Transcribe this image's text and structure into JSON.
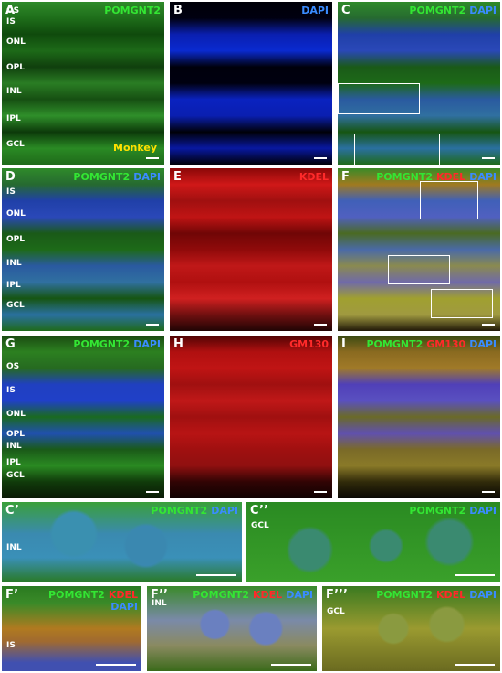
{
  "panels": [
    {
      "letter": "A",
      "stains": [
        {
          "text": "POMGNT2",
          "color": "#33e633"
        }
      ],
      "layers": [
        "OS",
        "IS",
        "ONL",
        "OPL",
        "INL",
        "IPL",
        "GCL"
      ],
      "note": "Monkey"
    },
    {
      "letter": "B",
      "stains": [
        {
          "text": "DAPI",
          "color": "#3a8cff"
        }
      ],
      "layers": []
    },
    {
      "letter": "C",
      "stains": [
        {
          "text": "POMGNT2",
          "color": "#33e633"
        },
        {
          "text": "DAPI",
          "color": "#3a8cff"
        }
      ],
      "layers": []
    },
    {
      "letter": "D",
      "stains": [
        {
          "text": "POMGNT2",
          "color": "#33e633"
        },
        {
          "text": "DAPI",
          "color": "#3a8cff"
        }
      ],
      "layers": [
        "IS",
        "ONL",
        "OPL",
        "INL",
        "IPL",
        "GCL"
      ]
    },
    {
      "letter": "E",
      "stains": [
        {
          "text": "KDEL",
          "color": "#ff2a2a"
        }
      ],
      "layers": []
    },
    {
      "letter": "F",
      "stains": [
        {
          "text": "POMGNT2",
          "color": "#33e633"
        },
        {
          "text": "KDEL",
          "color": "#ff2a2a"
        },
        {
          "text": "DAPI",
          "color": "#3a8cff"
        }
      ],
      "layers": []
    },
    {
      "letter": "G",
      "stains": [
        {
          "text": "POMGNT2",
          "color": "#33e633"
        },
        {
          "text": "DAPI",
          "color": "#3a8cff"
        }
      ],
      "layers": [
        "OS",
        "IS",
        "ONL",
        "OPL",
        "INL",
        "IPL",
        "GCL"
      ]
    },
    {
      "letter": "H",
      "stains": [
        {
          "text": "GM130",
          "color": "#ff2a2a"
        }
      ],
      "layers": []
    },
    {
      "letter": "I",
      "stains": [
        {
          "text": "POMGNT2",
          "color": "#33e633"
        },
        {
          "text": "GM130",
          "color": "#ff2a2a"
        },
        {
          "text": "DAPI",
          "color": "#3a8cff"
        }
      ],
      "layers": []
    },
    {
      "letter": "C’",
      "stains": [
        {
          "text": "POMGNT2",
          "color": "#33e633"
        },
        {
          "text": "DAPI",
          "color": "#3a8cff"
        }
      ],
      "layers": [
        "INL"
      ]
    },
    {
      "letter": "C’’",
      "stains": [
        {
          "text": "POMGNT2",
          "color": "#33e633"
        },
        {
          "text": "DAPI",
          "color": "#3a8cff"
        }
      ],
      "layers": [
        "GCL"
      ]
    },
    {
      "letter": "F’",
      "stains": [
        {
          "text": "POMGNT2",
          "color": "#33e633"
        },
        {
          "text": "KDEL",
          "color": "#ff2a2a"
        },
        {
          "text": "DAPI",
          "color": "#3a8cff"
        }
      ],
      "layers": [
        "IS"
      ]
    },
    {
      "letter": "F’’",
      "stains": [
        {
          "text": "POMGNT2",
          "color": "#33e633"
        },
        {
          "text": "KDEL",
          "color": "#ff2a2a"
        },
        {
          "text": "DAPI",
          "color": "#3a8cff"
        }
      ],
      "layers": [
        "INL"
      ]
    },
    {
      "letter": "F’’’",
      "stains": [
        {
          "text": "POMGNT2",
          "color": "#33e633"
        },
        {
          "text": "KDEL",
          "color": "#ff2a2a"
        },
        {
          "text": "DAPI",
          "color": "#3a8cff"
        }
      ],
      "layers": [
        "GCL"
      ]
    }
  ]
}
